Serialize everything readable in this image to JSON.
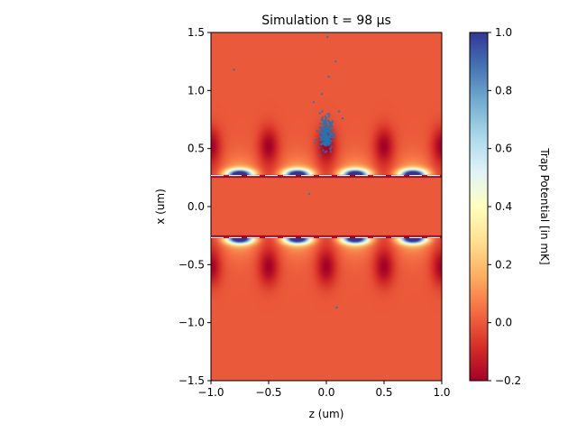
{
  "chart_data": {
    "type": "heatmap",
    "title": "Simulation t = 98 µs",
    "xlabel": "z (um)",
    "ylabel": "x (um)",
    "xlim": [
      -1.0,
      1.0
    ],
    "ylim": [
      -1.5,
      1.5
    ],
    "xticks": [
      "−1.0",
      "−0.5",
      "0.0",
      "0.5",
      "1.0"
    ],
    "yticks": [
      "−1.5",
      "−1.0",
      "−0.5",
      "0.0",
      "0.5",
      "1.0",
      "1.5"
    ],
    "colorbar": {
      "label": "Trap Potential [in mK]",
      "range": [
        -0.2,
        1.0
      ],
      "ticks": [
        "−0.2",
        "0.0",
        "0.2",
        "0.4",
        "0.6",
        "0.8",
        "1.0"
      ],
      "colormap": "RdYlBu",
      "colors": [
        "#a50026",
        "#d73027",
        "#f46d43",
        "#fdae61",
        "#fee090",
        "#ffffbf",
        "#e0f3f8",
        "#abd9e9",
        "#74add1",
        "#4575b4",
        "#313695"
      ]
    },
    "waveguide_edges_x": [
      -0.26,
      0.26
    ],
    "lattice_period_z": 0.5,
    "potential_wells": [
      {
        "z": -0.75,
        "x": 0.28,
        "potential": 1.0
      },
      {
        "z": -0.25,
        "x": 0.28,
        "potential": 1.0
      },
      {
        "z": 0.25,
        "x": 0.28,
        "potential": 1.0
      },
      {
        "z": 0.75,
        "x": 0.28,
        "potential": 1.0
      },
      {
        "z": -0.75,
        "x": -0.28,
        "potential": 1.0
      },
      {
        "z": -0.25,
        "x": -0.28,
        "potential": 1.0
      },
      {
        "z": 0.25,
        "x": -0.28,
        "potential": 1.0
      },
      {
        "z": 0.75,
        "x": -0.28,
        "potential": 1.0
      }
    ],
    "repulsive_peaks": [
      {
        "z": -1.0,
        "x": 0.52,
        "potential": -0.2
      },
      {
        "z": -0.5,
        "x": 0.52,
        "potential": -0.2
      },
      {
        "z": 0.0,
        "x": 0.52,
        "potential": -0.2
      },
      {
        "z": 0.5,
        "x": 0.52,
        "potential": -0.2
      },
      {
        "z": 1.0,
        "x": 0.52,
        "potential": -0.2
      },
      {
        "z": -1.0,
        "x": -0.52,
        "potential": -0.2
      },
      {
        "z": -0.5,
        "x": -0.52,
        "potential": -0.2
      },
      {
        "z": 0.0,
        "x": -0.52,
        "potential": -0.2
      },
      {
        "z": 0.5,
        "x": -0.52,
        "potential": -0.2
      },
      {
        "z": 1.0,
        "x": -0.52,
        "potential": -0.2
      }
    ],
    "atoms": {
      "color": "#1f77b4",
      "cluster": {
        "center_z": 0.0,
        "center_x": 0.57,
        "count": 220
      },
      "outliers": [
        {
          "z": 0.01,
          "x": 1.46
        },
        {
          "z": 0.08,
          "x": 1.25
        },
        {
          "z": -0.8,
          "x": 1.18
        },
        {
          "z": 0.02,
          "x": 1.12
        },
        {
          "z": -0.04,
          "x": 0.97
        },
        {
          "z": -0.11,
          "x": 0.9
        },
        {
          "z": 0.14,
          "x": 0.76
        },
        {
          "z": 0.11,
          "x": 0.82
        },
        {
          "z": -0.15,
          "x": 0.11
        },
        {
          "z": 0.09,
          "x": -0.87
        }
      ]
    }
  }
}
